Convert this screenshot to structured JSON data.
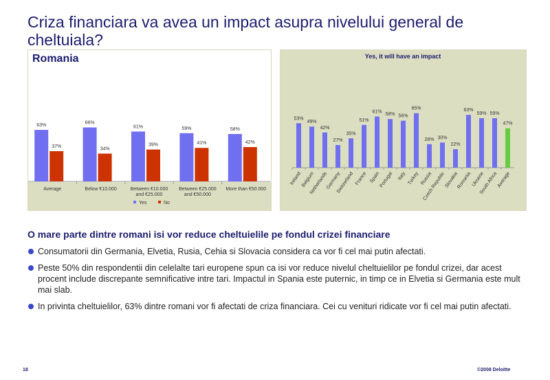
{
  "slide": {
    "title": "Criza financiara va avea un impact asupra nivelului general de cheltuiala?",
    "subheading": "O mare parte dintre romani isi vor reduce cheltuielile pe fondul crizei financiare",
    "bullets": [
      "Consumatorii din Germania, Elvetia, Rusia, Cehia si Slovacia considera ca vor fi cel mai putin afectati.",
      "Peste 50% din respondentii din celelalte tari europene spun ca isi vor reduce nivelul cheltuielilor pe fondul crizei, dar acest procent include discrepante semnificative intre tari. Impactul in Spania este puternic, in timp ce in Elvetia si Germania este mult mai slab.",
      "In privinta cheltuielilor, 63% dintre romani vor fi afectati de criza financiara. Cei cu venituri ridicate vor fi cel mai putin afectati."
    ],
    "page_number": "18",
    "copyright": "©2008 Deloitte"
  },
  "chart_data": [
    {
      "type": "bar",
      "title": "Romania",
      "categories": [
        "Average",
        "Below €10.000",
        "Between €10.000 and €25.000",
        "Between €25.000 and €50.000",
        "More than €50.000"
      ],
      "series": [
        {
          "name": "Yes",
          "values": [
            63,
            66,
            61,
            59,
            58
          ],
          "labels": [
            "63%",
            "66%",
            "61%",
            "59%",
            "58%"
          ]
        },
        {
          "name": "No",
          "values": [
            37,
            34,
            39,
            41,
            42
          ],
          "labels": [
            "37%",
            "34%",
            "39%",
            "41%",
            "42%"
          ]
        }
      ],
      "colors": {
        "Yes": "#6f6ff0",
        "No": "#cc3300",
        "bg": "#dcdec1"
      },
      "ylim": [
        0,
        75
      ],
      "legend": "bottom"
    },
    {
      "type": "bar",
      "title": "Yes, it will have an impact",
      "categories": [
        "Ireland",
        "Belgium",
        "Netherlands",
        "Germany",
        "Switzerland",
        "France",
        "Spain",
        "Portugal",
        "Italy",
        "Turkey",
        "Russia",
        "Czech Republic",
        "Slovakia",
        "Romania",
        "Ukraine",
        "South Africa",
        "Average"
      ],
      "values": [
        53,
        49,
        42,
        27,
        35,
        51,
        61,
        58,
        56,
        65,
        28,
        30,
        22,
        63,
        59,
        59,
        47
      ],
      "labels": [
        "53%",
        "49%",
        "42%",
        "27%",
        "35%",
        "51%",
        "61%",
        "58%",
        "56%",
        "65%",
        "28%",
        "30%",
        "22%",
        "63%",
        "59%",
        "59%",
        "47%"
      ],
      "colors": {
        "bar": "#6f6ff0",
        "highlight": "#66cc44",
        "bg": "#dcdec1"
      },
      "ylim": [
        0,
        75
      ]
    }
  ]
}
